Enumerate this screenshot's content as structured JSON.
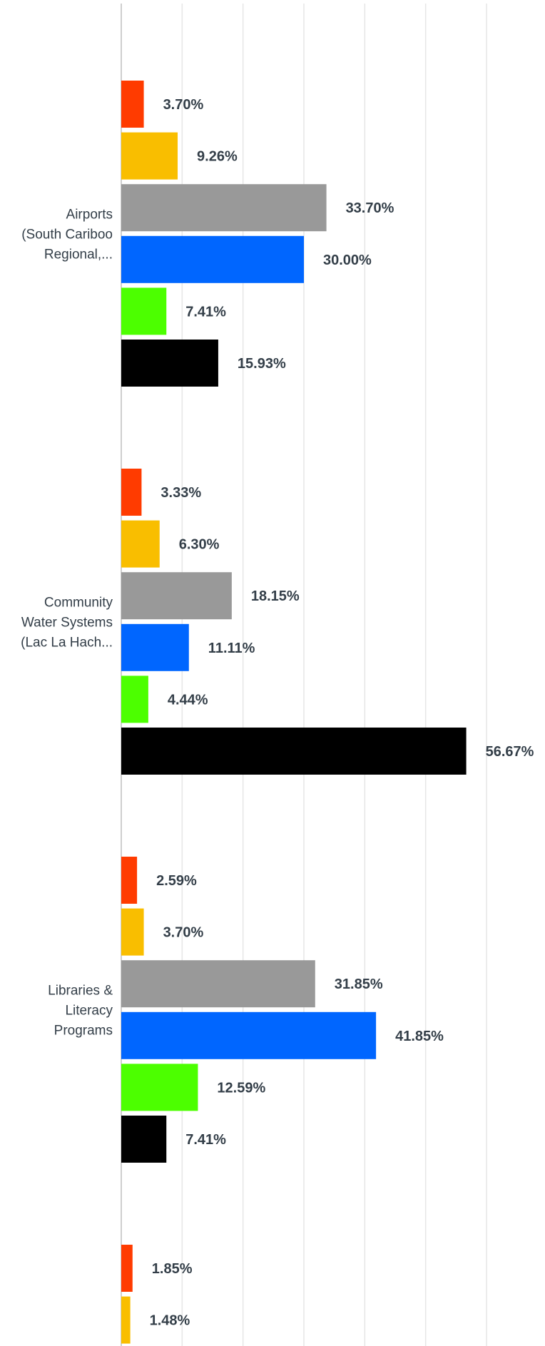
{
  "chart_data": {
    "type": "bar",
    "orientation": "horizontal",
    "categories": [
      "Airports (South Cariboo Regional,...",
      "Community Water Systems (Lac La Hach...",
      "Libraries & Literacy Programs",
      ""
    ],
    "category_lines": [
      [
        "Airports",
        "(South Cariboo",
        "Regional,..."
      ],
      [
        "Community",
        "Water Systems",
        "(Lac La Hach..."
      ],
      [
        "Libraries &",
        "Literacy",
        "Programs"
      ],
      []
    ],
    "series": [
      {
        "color": "#ff3b00",
        "values": [
          3.7,
          3.33,
          2.59,
          1.85
        ],
        "labels": [
          "3.70%",
          "3.33%",
          "2.59%",
          "1.85%"
        ]
      },
      {
        "color": "#f9be00",
        "values": [
          9.26,
          6.3,
          3.7,
          1.48
        ],
        "labels": [
          "9.26%",
          "6.30%",
          "3.70%",
          "1.48%"
        ]
      },
      {
        "color": "#999999",
        "values": [
          33.7,
          18.15,
          31.85,
          null
        ],
        "labels": [
          "33.70%",
          "18.15%",
          "31.85%",
          null
        ]
      },
      {
        "color": "#0066ff",
        "values": [
          30.0,
          11.11,
          41.85,
          null
        ],
        "labels": [
          "30.00%",
          "11.11%",
          "41.85%",
          null
        ]
      },
      {
        "color": "#4cff00",
        "values": [
          7.41,
          4.44,
          12.59,
          null
        ],
        "labels": [
          "7.41%",
          "4.44%",
          "12.59%",
          null
        ]
      },
      {
        "color": "#000000",
        "values": [
          15.93,
          56.67,
          7.41,
          null
        ],
        "labels": [
          "15.93%",
          "56.67%",
          "7.41%",
          null
        ]
      }
    ],
    "xlim": [
      0,
      60
    ],
    "grid": true,
    "legend": "none",
    "title": "",
    "xlabel": "",
    "ylabel": ""
  }
}
